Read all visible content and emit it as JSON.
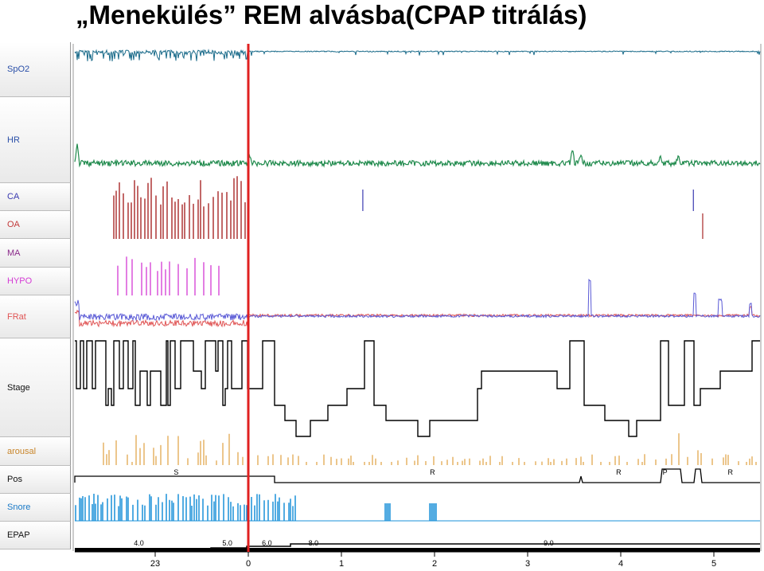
{
  "title": "„Menekülés” REM alvásba(CPAP titrálás)",
  "colors": {
    "spo2": "#1a6b8a",
    "hr": "#1f8a4c",
    "ca": "#3a3ab0",
    "oa": "#a82828",
    "ma": "#8a2a8a",
    "hypo": "#d43ad4",
    "frat_blue": "#5a5ad6",
    "frat_red": "#e05555",
    "stage": "#000000",
    "arousal": "#e0a040",
    "pos": "#000000",
    "snore": "#1a90d8",
    "marker": "#e02020"
  },
  "lanes": [
    {
      "key": "spo2",
      "label": "SpO2"
    },
    {
      "key": "hr",
      "label": "HR"
    },
    {
      "key": "ca",
      "label": "CA"
    },
    {
      "key": "oa",
      "label": "OA"
    },
    {
      "key": "ma",
      "label": "MA"
    },
    {
      "key": "hypo",
      "label": "HYPO"
    },
    {
      "key": "frat",
      "label": "FRat"
    },
    {
      "key": "stage",
      "label": "Stage"
    },
    {
      "key": "arousal",
      "label": "arousal"
    },
    {
      "key": "pos",
      "label": "Pos"
    },
    {
      "key": "snore",
      "label": "Snore"
    },
    {
      "key": "epap",
      "label": "EPAP"
    }
  ],
  "chart_data": {
    "type": "line",
    "x_axis": {
      "ticks": [
        "23",
        "0",
        "1",
        "2",
        "3",
        "4",
        "5"
      ]
    },
    "marker_x_hour": 0,
    "pos_labels": [
      {
        "label": "S",
        "hour": -0.8
      },
      {
        "label": "R",
        "hour": 1.95
      },
      {
        "label": "R",
        "hour": 3.95
      },
      {
        "label": "P",
        "hour": 4.45
      },
      {
        "label": "R",
        "hour": 5.15
      }
    ],
    "epap_levels": [
      {
        "value": "4.0",
        "start_hour": -1.95,
        "end_hour": -0.4
      },
      {
        "value": "5.0",
        "start_hour": -0.4,
        "end_hour": -0.05
      },
      {
        "value": "6.0",
        "start_hour": -0.05,
        "end_hour": 0.45
      },
      {
        "value": "8.0",
        "start_hour": 0.45,
        "end_hour": 0.95
      },
      {
        "value": "9.0",
        "start_hour": 0.95,
        "end_hour": 5.5
      }
    ],
    "ca_events_hour": [
      1.23,
      4.78
    ],
    "oa_events_hour": [
      4.88
    ]
  }
}
